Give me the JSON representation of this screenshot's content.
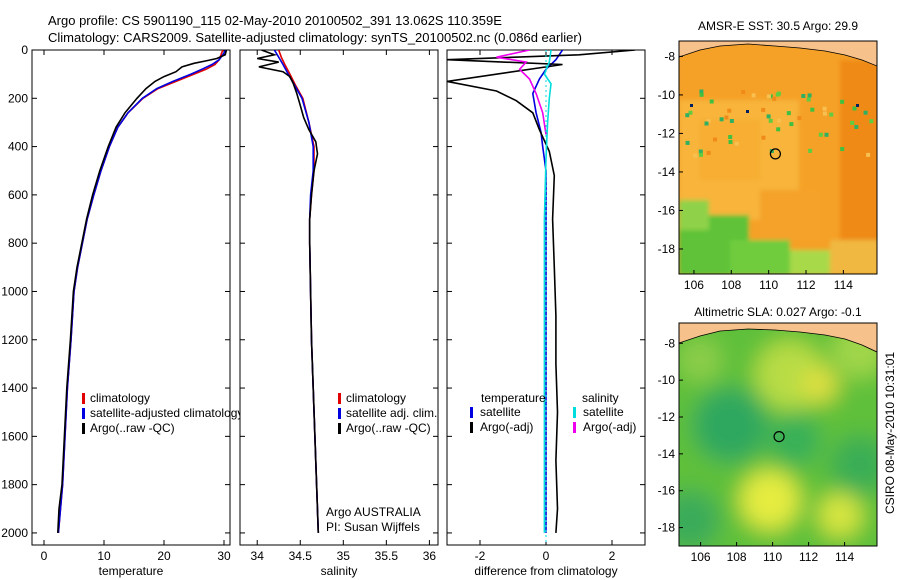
{
  "header": {
    "line1": "Argo profile: CS 5901190_115 02-May-2010 20100502_391 13.062S 110.359E",
    "line2": "Climatology: CARS2009. Satellite-adjusted climatology: synTS_20100502.nc (0.086d earlier)"
  },
  "side_stamp": "CSIRO 08-May-2010 10:31:01",
  "chart_data": [
    {
      "id": "temperature",
      "type": "line",
      "xlabel": "temperature",
      "ylabel": "",
      "xlim": [
        -2,
        31
      ],
      "ylim": [
        2050,
        0
      ],
      "x_ticks": [
        0,
        10,
        20,
        30
      ],
      "y_ticks": [
        0,
        200,
        400,
        600,
        800,
        1000,
        1200,
        1400,
        1600,
        1800,
        2000
      ],
      "legend": {
        "placement": "lower-center",
        "entries": [
          {
            "label": "climatology",
            "color": "#e00000"
          },
          {
            "label": "satellite-adjusted climatology",
            "color": "#0000e0"
          },
          {
            "label": "Argo(..raw -QC)",
            "color": "#000000"
          }
        ]
      },
      "series": [
        {
          "color": "#e00000",
          "points": [
            [
              29.8,
              0
            ],
            [
              29.5,
              20
            ],
            [
              29.2,
              40
            ],
            [
              28.5,
              60
            ],
            [
              27,
              80
            ],
            [
              25,
              100
            ],
            [
              22,
              130
            ],
            [
              19,
              160
            ],
            [
              16.5,
              200
            ],
            [
              14,
              260
            ],
            [
              12.3,
              320
            ],
            [
              10.9,
              400
            ],
            [
              9.5,
              500
            ],
            [
              8.3,
              600
            ],
            [
              7.2,
              700
            ],
            [
              6.4,
              800
            ],
            [
              5.6,
              900
            ],
            [
              5,
              1000
            ],
            [
              4.5,
              1200
            ],
            [
              3.9,
              1400
            ],
            [
              3.5,
              1600
            ],
            [
              3.1,
              1800
            ],
            [
              2.4,
              2000
            ]
          ]
        },
        {
          "color": "#0000e0",
          "points": [
            [
              30.3,
              0
            ],
            [
              29.8,
              20
            ],
            [
              29.2,
              40
            ],
            [
              28,
              60
            ],
            [
              26.3,
              80
            ],
            [
              24.5,
              100
            ],
            [
              21.5,
              130
            ],
            [
              18.8,
              160
            ],
            [
              16.4,
              200
            ],
            [
              14,
              260
            ],
            [
              12.3,
              320
            ],
            [
              10.9,
              400
            ],
            [
              9.5,
              500
            ],
            [
              8.3,
              600
            ],
            [
              7.2,
              700
            ],
            [
              6.4,
              800
            ],
            [
              5.6,
              900
            ],
            [
              5,
              1000
            ],
            [
              4.5,
              1200
            ],
            [
              3.9,
              1400
            ],
            [
              3.5,
              1600
            ],
            [
              3.1,
              1800
            ],
            [
              2.4,
              2000
            ]
          ]
        },
        {
          "color": "#000000",
          "points": [
            [
              30.4,
              0
            ],
            [
              30.2,
              20
            ],
            [
              28.8,
              35
            ],
            [
              27,
              45
            ],
            [
              25,
              55
            ],
            [
              23,
              70
            ],
            [
              22,
              90
            ],
            [
              20,
              110
            ],
            [
              18.5,
              130
            ],
            [
              17,
              160
            ],
            [
              15.5,
              200
            ],
            [
              13.5,
              260
            ],
            [
              12,
              320
            ],
            [
              10.7,
              400
            ],
            [
              9.3,
              500
            ],
            [
              8.1,
              600
            ],
            [
              7.1,
              700
            ],
            [
              6.3,
              800
            ],
            [
              5.5,
              900
            ],
            [
              4.9,
              1000
            ],
            [
              4.4,
              1200
            ],
            [
              3.8,
              1400
            ],
            [
              3.4,
              1600
            ],
            [
              3,
              1800
            ],
            [
              2.5,
              1900
            ],
            [
              2.3,
              2000
            ]
          ]
        }
      ]
    },
    {
      "id": "salinity",
      "type": "line",
      "xlabel": "salinity",
      "ylabel": "",
      "xlim": [
        33.8,
        36.1
      ],
      "ylim": [
        2050,
        0
      ],
      "x_ticks": [
        34,
        34.5,
        35,
        35.5,
        36
      ],
      "legend": {
        "placement": "lower-center",
        "entries": [
          {
            "label": "climatology",
            "color": "#e00000"
          },
          {
            "label": "satellite adj. clim.",
            "color": "#0000e0"
          },
          {
            "label": "Argo(..raw -QC)",
            "color": "#000000"
          }
        ]
      },
      "annotation": [
        "Argo AUSTRALIA",
        "PI: Susan Wijffels"
      ],
      "series": [
        {
          "color": "#e00000",
          "points": [
            [
              34.25,
              0
            ],
            [
              34.28,
              30
            ],
            [
              34.32,
              60
            ],
            [
              34.38,
              100
            ],
            [
              34.45,
              150
            ],
            [
              34.53,
              200
            ],
            [
              34.6,
              300
            ],
            [
              34.66,
              400
            ],
            [
              34.66,
              500
            ],
            [
              34.63,
              600
            ],
            [
              34.61,
              700
            ],
            [
              34.61,
              800
            ],
            [
              34.62,
              1000
            ],
            [
              34.63,
              1200
            ],
            [
              34.65,
              1400
            ],
            [
              34.67,
              1600
            ],
            [
              34.69,
              1800
            ],
            [
              34.71,
              2000
            ]
          ]
        },
        {
          "color": "#0000e0",
          "points": [
            [
              34.2,
              0
            ],
            [
              34.25,
              30
            ],
            [
              34.3,
              60
            ],
            [
              34.36,
              100
            ],
            [
              34.44,
              150
            ],
            [
              34.52,
              200
            ],
            [
              34.6,
              300
            ],
            [
              34.65,
              400
            ],
            [
              34.65,
              500
            ],
            [
              34.62,
              600
            ],
            [
              34.61,
              700
            ],
            [
              34.61,
              800
            ],
            [
              34.62,
              1000
            ],
            [
              34.63,
              1200
            ],
            [
              34.65,
              1400
            ],
            [
              34.67,
              1600
            ],
            [
              34.69,
              1800
            ],
            [
              34.71,
              2000
            ]
          ]
        },
        {
          "color": "#000000",
          "points": [
            [
              34.05,
              0
            ],
            [
              34.2,
              20
            ],
            [
              34.0,
              35
            ],
            [
              34.25,
              50
            ],
            [
              34.02,
              70
            ],
            [
              34.3,
              90
            ],
            [
              34.38,
              110
            ],
            [
              34.42,
              140
            ],
            [
              34.46,
              180
            ],
            [
              34.5,
              230
            ],
            [
              34.54,
              280
            ],
            [
              34.6,
              330
            ],
            [
              34.68,
              380
            ],
            [
              34.7,
              430
            ],
            [
              34.66,
              500
            ],
            [
              34.63,
              600
            ],
            [
              34.61,
              700
            ],
            [
              34.61,
              800
            ],
            [
              34.62,
              1000
            ],
            [
              34.63,
              1200
            ],
            [
              34.65,
              1400
            ],
            [
              34.67,
              1600
            ],
            [
              34.69,
              1800
            ],
            [
              34.71,
              2000
            ]
          ]
        }
      ]
    },
    {
      "id": "difference",
      "type": "line",
      "xlabel": "difference from climatology",
      "ylabel": "",
      "xlim": [
        -3,
        3
      ],
      "ylim": [
        2050,
        0
      ],
      "x_ticks": [
        -2,
        0,
        2
      ],
      "legend": {
        "placement": "lower-center",
        "temperature_header": "temperature",
        "salinity_header": "salinity",
        "entries": [
          {
            "label": "satellite",
            "color": "#0000e0"
          },
          {
            "label": "Argo(-adj)",
            "color": "#000000"
          },
          {
            "label": "satellite",
            "color": "#00dddd"
          },
          {
            "label": "Argo(-adj)",
            "color": "#ee00ee"
          }
        ]
      },
      "series": [
        {
          "color": "#0000e0",
          "points": [
            [
              0.5,
              0
            ],
            [
              0.3,
              40
            ],
            [
              0.0,
              80
            ],
            [
              -0.2,
              120
            ],
            [
              -0.4,
              180
            ],
            [
              -0.3,
              260
            ],
            [
              -0.15,
              340
            ],
            [
              -0.1,
              400
            ],
            [
              0,
              500
            ],
            [
              0,
              2000
            ]
          ]
        },
        {
          "color": "#000000",
          "points": [
            [
              2.7,
              0
            ],
            [
              1.0,
              20
            ],
            [
              -3,
              40
            ],
            [
              0.5,
              60
            ],
            [
              -3,
              130
            ],
            [
              -1.5,
              170
            ],
            [
              -0.9,
              210
            ],
            [
              -0.4,
              260
            ],
            [
              -0.2,
              330
            ],
            [
              0.1,
              420
            ],
            [
              0.25,
              520
            ],
            [
              0.2,
              700
            ],
            [
              0.25,
              900
            ],
            [
              0.3,
              1100
            ],
            [
              0.3,
              1300
            ],
            [
              0.35,
              1500
            ],
            [
              0.3,
              1700
            ],
            [
              0.35,
              1900
            ],
            [
              0.3,
              2000
            ]
          ]
        },
        {
          "color": "#00dddd",
          "points": [
            [
              0.15,
              0
            ],
            [
              0.1,
              50
            ],
            [
              -0.05,
              100
            ],
            [
              0.15,
              140
            ],
            [
              0.1,
              200
            ],
            [
              0.05,
              300
            ],
            [
              0,
              450
            ],
            [
              -0.05,
              700
            ],
            [
              -0.05,
              1200
            ],
            [
              -0.05,
              2000
            ]
          ]
        },
        {
          "color": "#ee00ee",
          "points": [
            [
              -0.5,
              0
            ],
            [
              -1.5,
              30
            ],
            [
              -0.6,
              50
            ],
            [
              -0.8,
              80
            ],
            [
              -0.5,
              120
            ],
            [
              -0.3,
              180
            ],
            [
              -0.1,
              260
            ],
            [
              0,
              350
            ]
          ]
        }
      ]
    },
    {
      "id": "sst-map",
      "type": "heatmap",
      "title": "AMSR-E SST: 30.5  Argo: 29.9",
      "xlim": [
        105.2,
        115.8
      ],
      "ylim": [
        -19.3,
        -7.2
      ],
      "x_ticks": [
        106,
        108,
        110,
        112,
        114
      ],
      "y_ticks": [
        -8,
        -10,
        -12,
        -14,
        -16,
        -18
      ],
      "marker": {
        "lon": 110.359,
        "lat": -13.062
      }
    },
    {
      "id": "sla-map",
      "type": "heatmap",
      "title": "Altimetric SLA: 0.027  Argo: -0.1",
      "xlim": [
        104.8,
        115.8
      ],
      "ylim": [
        -19.0,
        -6.9
      ],
      "x_ticks": [
        106,
        108,
        110,
        112,
        114
      ],
      "y_ticks": [
        -8,
        -10,
        -12,
        -14,
        -16,
        -18
      ],
      "marker": {
        "lon": 110.359,
        "lat": -13.062
      }
    }
  ]
}
